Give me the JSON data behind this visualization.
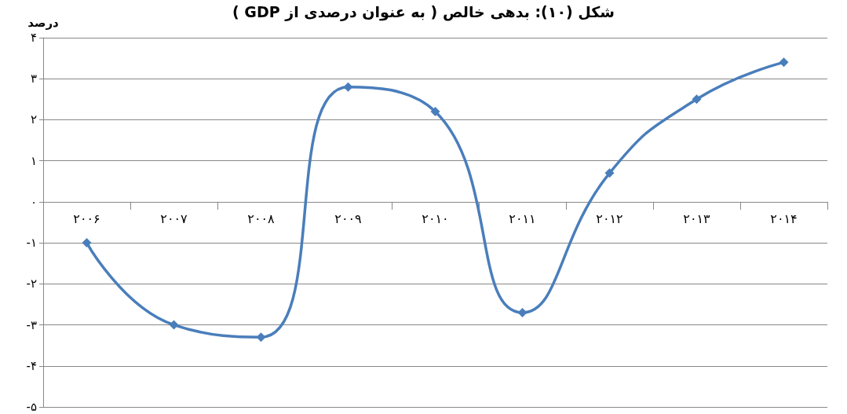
{
  "chart_data": {
    "type": "line",
    "title": "شکل (۱۰): بدهی خالص ( به عنوان درصدی از GDP )",
    "ylabel": "درصد",
    "categories": [
      "۲۰۰۶",
      "۲۰۰۷",
      "۲۰۰۸",
      "۲۰۰۹",
      "۲۰۱۰",
      "۲۰۱۱",
      "۲۰۱۲",
      "۲۰۱۳",
      "۲۰۱۴"
    ],
    "series": [
      {
        "color": "#4a7ebb",
        "values": [
          -1.0,
          -3.0,
          -3.3,
          2.8,
          2.2,
          -2.7,
          0.7,
          2.5,
          3.4
        ]
      }
    ],
    "ylim": [
      -5,
      4
    ],
    "yticks": [
      {
        "value": -5,
        "label": "-۵"
      },
      {
        "value": -4,
        "label": "-۴"
      },
      {
        "value": -3,
        "label": "-۳"
      },
      {
        "value": -2,
        "label": "-۲"
      },
      {
        "value": -1,
        "label": "-۱"
      },
      {
        "value": 0,
        "label": "۰"
      },
      {
        "value": 1,
        "label": "۱"
      },
      {
        "value": 2,
        "label": "۲"
      },
      {
        "value": 3,
        "label": "۳"
      },
      {
        "value": 4,
        "label": "۴"
      }
    ],
    "grid": "y",
    "marker": "diamond",
    "line_style": "solid"
  }
}
